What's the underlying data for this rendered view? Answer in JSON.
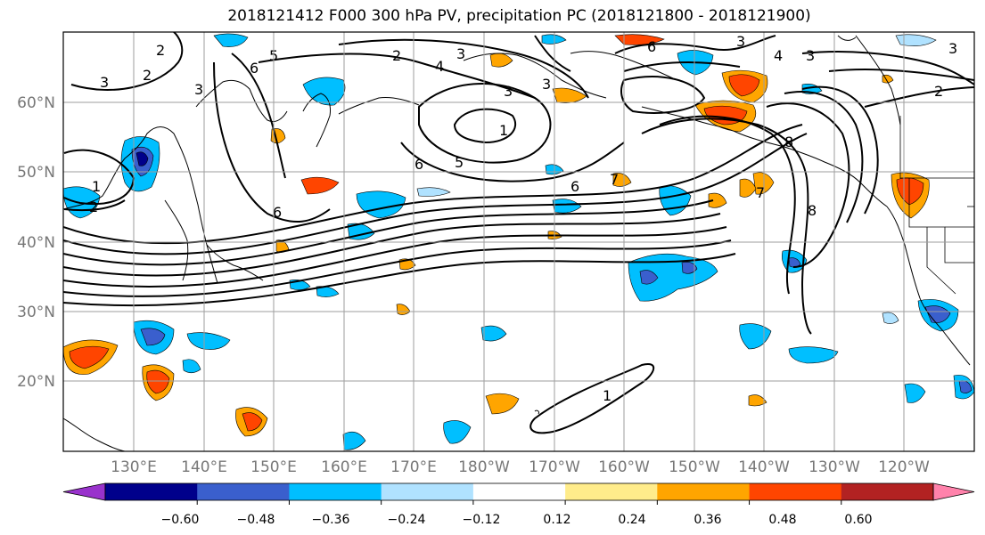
{
  "title": "2018121412 F000 300 hPa PV, precipitation PC (2018121800 - 2018121900)",
  "map": {
    "lat_labels": [
      "60°N",
      "50°N",
      "40°N",
      "30°N",
      "20°N"
    ],
    "lon_labels": [
      "130°E",
      "140°E",
      "150°E",
      "160°E",
      "170°E",
      "180°W",
      "170°W",
      "160°W",
      "150°W",
      "140°W",
      "130°W",
      "120°W"
    ],
    "pv_contour_labels": [
      "1",
      "2",
      "3",
      "4",
      "5",
      "6",
      "7",
      "8"
    ],
    "label_values": {
      "l1": "3",
      "l2": "2",
      "l3": "3",
      "l4": "2",
      "l5": "3",
      "l6": "4",
      "l7": "3",
      "l8": "2",
      "l9": "1",
      "l10": "3",
      "l11": "6",
      "l12": "5",
      "l13": "6",
      "l14": "7",
      "l15": "1",
      "l16": "2",
      "l17": "6",
      "l18": "6",
      "l19": "5",
      "l20": "7",
      "l21": "8",
      "l22": "8",
      "l23": "1",
      "l24": "3",
      "l25": "4",
      "l26": "3",
      "l27": "2",
      "l28": "6",
      "l29": "3"
    }
  },
  "colorbar": {
    "colors": [
      "#9932cc",
      "#00008b",
      "#3a5fcd",
      "#00bfff",
      "#b0e2ff",
      "#ffffff",
      "#ffec8b",
      "#ffa500",
      "#ff4500",
      "#b22222",
      "#ff82ab"
    ],
    "tick_labels": [
      "−0.60",
      "−0.48",
      "−0.36",
      "−0.24",
      "−0.12",
      "0.12",
      "0.24",
      "0.36",
      "0.48",
      "0.60"
    ]
  }
}
